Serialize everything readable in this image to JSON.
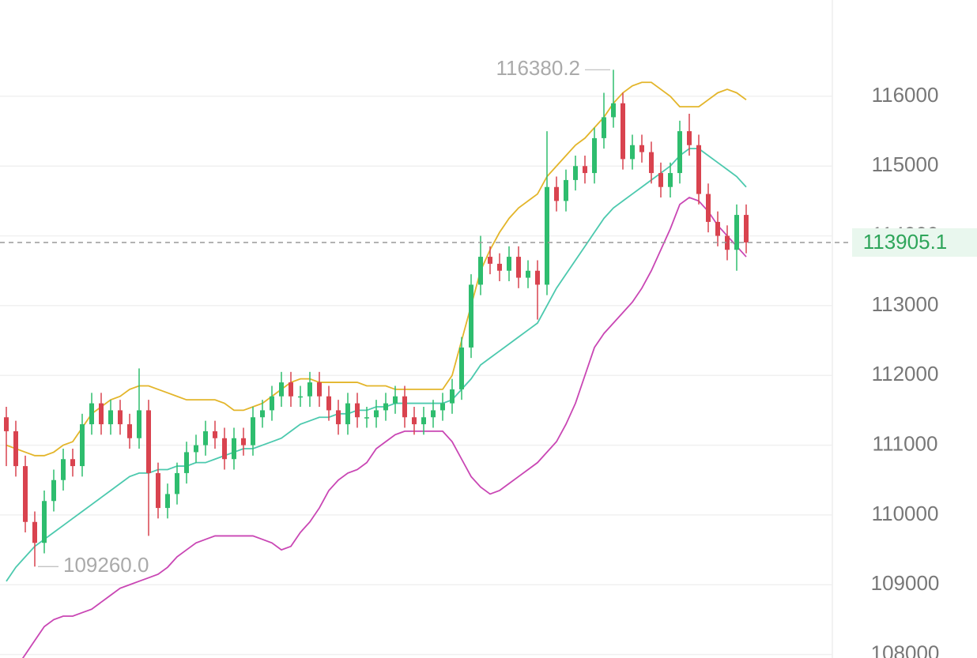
{
  "chart_data": {
    "type": "candlestick",
    "ylim": [
      107950,
      117380
    ],
    "yticks": [
      108000,
      109000,
      110000,
      111000,
      112000,
      113000,
      114000,
      115000,
      116000
    ],
    "grid": true,
    "up_color": "#2ebd6e",
    "down_color": "#d9434f",
    "open": [
      111400,
      111200,
      110700,
      109900,
      109600,
      110200,
      110500,
      110800,
      110700,
      111300,
      111600,
      111300,
      111500,
      111300,
      111100,
      111500,
      110600,
      110100,
      110300,
      110600,
      110900,
      111000,
      111200,
      111100,
      110800,
      111100,
      111000,
      111400,
      111500,
      111700,
      111900,
      111700,
      111700,
      111900,
      111700,
      111500,
      111300,
      111600,
      111400,
      111400,
      111500,
      111600,
      111700,
      111400,
      111300,
      111400,
      111500,
      111600,
      111800,
      112400,
      113300,
      113700,
      113600,
      113500,
      113700,
      113400,
      113500,
      113300,
      114700,
      114500,
      114800,
      115000,
      114900,
      115400,
      115700,
      115900,
      115100,
      115300,
      115200,
      114900,
      114700,
      114900,
      115500,
      115300,
      114600,
      114200,
      114000,
      113800,
      114300
    ],
    "high": [
      111550,
      111350,
      110850,
      110050,
      110350,
      110650,
      110950,
      110950,
      111450,
      111750,
      111750,
      111650,
      111650,
      111450,
      112100,
      111650,
      110750,
      110450,
      110750,
      111050,
      111150,
      111350,
      111350,
      111250,
      111250,
      111250,
      111550,
      111650,
      111850,
      112050,
      112050,
      111850,
      112050,
      112050,
      111850,
      111650,
      111750,
      111750,
      111550,
      111650,
      111750,
      111850,
      111850,
      111550,
      111550,
      111650,
      111750,
      111950,
      112550,
      113450,
      114000,
      113850,
      113750,
      113850,
      113850,
      113650,
      113650,
      115500,
      114850,
      114950,
      115150,
      115150,
      115550,
      116050,
      116380.2,
      116050,
      115450,
      115450,
      115350,
      115050,
      115050,
      115650,
      115750,
      115450,
      114750,
      114350,
      114150,
      114450,
      114450
    ],
    "low": [
      110700,
      110550,
      109750,
      109260,
      109450,
      110050,
      110350,
      110550,
      110550,
      111150,
      111150,
      111150,
      111150,
      110950,
      110950,
      109700,
      109950,
      109950,
      110150,
      110450,
      110750,
      110850,
      110950,
      110650,
      110650,
      110850,
      110850,
      111250,
      111350,
      111550,
      111550,
      111550,
      111550,
      111550,
      111350,
      111150,
      111150,
      111250,
      111250,
      111250,
      111350,
      111450,
      111250,
      111150,
      111150,
      111250,
      111350,
      111450,
      111650,
      112250,
      113150,
      113450,
      113350,
      113350,
      113250,
      113250,
      112800,
      113150,
      114350,
      114350,
      114650,
      114750,
      114750,
      115250,
      115550,
      114950,
      114950,
      115050,
      114750,
      114550,
      114550,
      114750,
      115150,
      114450,
      114050,
      113850,
      113650,
      113500,
      113750
    ],
    "close": [
      111200,
      110700,
      109900,
      109600,
      110200,
      110500,
      110800,
      110700,
      111300,
      111600,
      111300,
      111500,
      111300,
      111100,
      111500,
      110600,
      110100,
      110300,
      110600,
      110900,
      111000,
      111200,
      111100,
      110800,
      111100,
      111000,
      111400,
      111500,
      111700,
      111900,
      111700,
      111700,
      111900,
      111700,
      111500,
      111300,
      111600,
      111400,
      111400,
      111500,
      111600,
      111700,
      111400,
      111300,
      111400,
      111500,
      111600,
      111800,
      112400,
      113300,
      113700,
      113600,
      113500,
      113700,
      113400,
      113500,
      113300,
      114700,
      114500,
      114800,
      115000,
      114900,
      115400,
      115700,
      115900,
      115100,
      115300,
      115200,
      114900,
      114700,
      114900,
      115500,
      115300,
      114600,
      114200,
      114000,
      113800,
      114300,
      113905.1
    ],
    "bands": [
      {
        "color": "#e3b52a",
        "values": [
          111000,
          110950,
          110900,
          110850,
          110850,
          110900,
          111000,
          111050,
          111250,
          111450,
          111550,
          111650,
          111700,
          111800,
          111850,
          111850,
          111800,
          111750,
          111700,
          111650,
          111650,
          111650,
          111650,
          111600,
          111500,
          111500,
          111550,
          111600,
          111700,
          111800,
          111900,
          111950,
          111950,
          111900,
          111900,
          111900,
          111900,
          111900,
          111850,
          111850,
          111850,
          111800,
          111800,
          111800,
          111800,
          111800,
          111800,
          112000,
          112500,
          113000,
          113500,
          113800,
          114050,
          114250,
          114400,
          114500,
          114600,
          114850,
          115000,
          115150,
          115300,
          115400,
          115550,
          115700,
          115900,
          116050,
          116150,
          116200,
          116200,
          116100,
          116000,
          115850,
          115850,
          115850,
          115950,
          116050,
          116100,
          116050,
          115950
        ]
      },
      {
        "color": "#4cc9ae",
        "values": [
          109050,
          109250,
          109400,
          109550,
          109650,
          109750,
          109850,
          109950,
          110050,
          110150,
          110250,
          110350,
          110450,
          110550,
          110600,
          110600,
          110650,
          110650,
          110700,
          110700,
          110750,
          110750,
          110800,
          110850,
          110900,
          110950,
          110950,
          111000,
          111050,
          111100,
          111200,
          111300,
          111350,
          111400,
          111400,
          111450,
          111450,
          111500,
          111500,
          111550,
          111550,
          111600,
          111600,
          111600,
          111600,
          111600,
          111600,
          111650,
          111800,
          111950,
          112150,
          112250,
          112350,
          112450,
          112550,
          112650,
          112750,
          113000,
          113250,
          113450,
          113650,
          113850,
          114050,
          114250,
          114400,
          114500,
          114600,
          114700,
          114800,
          114900,
          115000,
          115150,
          115250,
          115250,
          115150,
          115050,
          114950,
          114850,
          114700
        ]
      },
      {
        "color": "#c946b4",
        "values": [
          107700,
          107800,
          108000,
          108200,
          108400,
          108500,
          108550,
          108550,
          108600,
          108650,
          108750,
          108850,
          108950,
          109000,
          109050,
          109100,
          109150,
          109250,
          109400,
          109500,
          109600,
          109650,
          109700,
          109700,
          109700,
          109700,
          109700,
          109650,
          109600,
          109500,
          109550,
          109750,
          109900,
          110100,
          110350,
          110500,
          110600,
          110650,
          110750,
          110950,
          111050,
          111150,
          111200,
          111200,
          111200,
          111200,
          111200,
          111050,
          110800,
          110550,
          110400,
          110300,
          110350,
          110450,
          110550,
          110650,
          110750,
          110900,
          111050,
          111300,
          111600,
          112000,
          112400,
          112600,
          112750,
          112900,
          113050,
          113250,
          113500,
          113800,
          114100,
          114450,
          114550,
          114500,
          114350,
          114150,
          114000,
          113850,
          113700
        ]
      }
    ],
    "last_price": 113905.1,
    "annotations": [
      {
        "value": 116380.2,
        "label": "116380.2",
        "side": "left"
      },
      {
        "value": 109260,
        "label": "109260.0",
        "side": "right"
      }
    ]
  }
}
